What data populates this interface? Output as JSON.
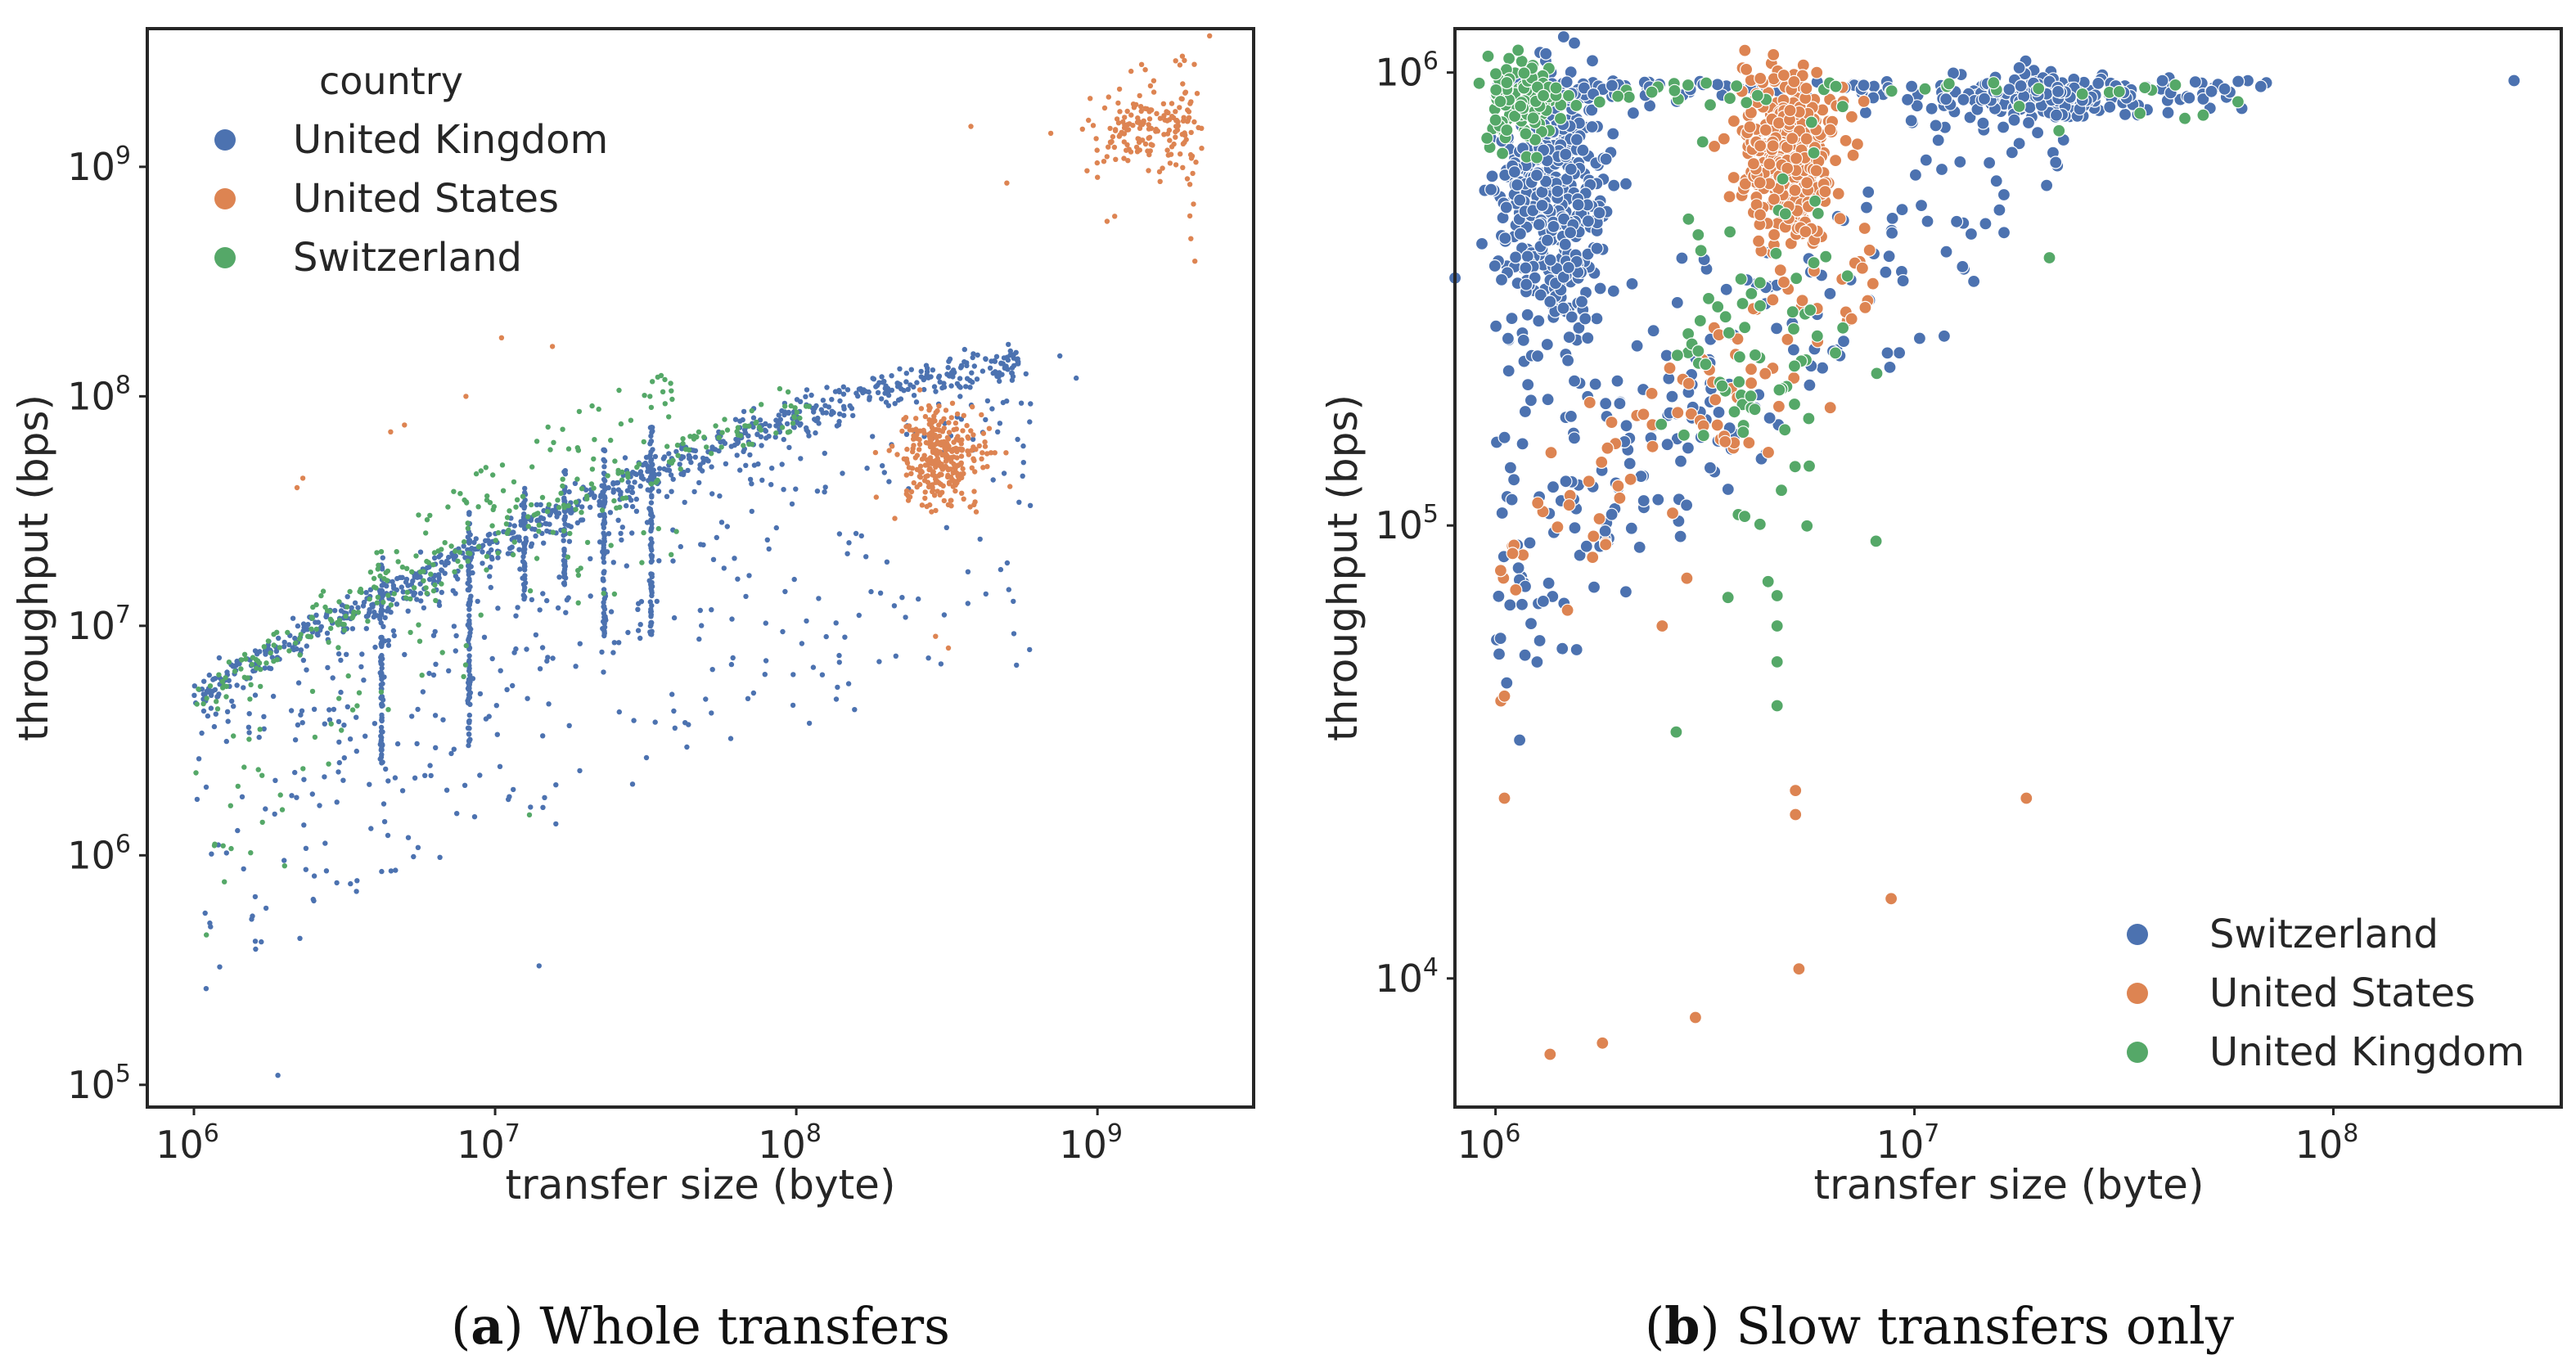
{
  "colors": {
    "blue": "#4c72b0",
    "orange": "#dd8452",
    "green": "#55a868"
  },
  "chart_data": [
    {
      "panel": "a",
      "type": "scatter",
      "caption_letter": "a",
      "caption_text": "Whole transfers",
      "xlabel": "transfer size (byte)",
      "ylabel": "throughput (bps)",
      "xscale": "log",
      "yscale": "log",
      "xlim": [
        700000.0,
        3300000000.0
      ],
      "ylim": [
        80000.0,
        4000000000.0
      ],
      "xticks": [
        {
          "base": "10",
          "exp": "6"
        },
        {
          "base": "10",
          "exp": "7"
        },
        {
          "base": "10",
          "exp": "8"
        },
        {
          "base": "10",
          "exp": "9"
        }
      ],
      "yticks": [
        {
          "base": "10",
          "exp": "5"
        },
        {
          "base": "10",
          "exp": "6"
        },
        {
          "base": "10",
          "exp": "7"
        },
        {
          "base": "10",
          "exp": "8"
        },
        {
          "base": "10",
          "exp": "9"
        }
      ],
      "legend": {
        "title": "country",
        "placement": "top-left",
        "entries": [
          "United Kingdom",
          "United States",
          "Switzerland"
        ]
      },
      "series": [
        {
          "name": "United Kingdom",
          "color_key": "blue",
          "description": "dense curve rising from about 5e6 bps at 1e6 bytes to about 1.4e8 bps at 5e8 bytes, with vertical streaks and scattered points below",
          "clusters": [
            {
              "kind": "curve",
              "x_range": [
                1000000.0,
                550000000.0
              ],
              "y_at_x0": 5000000.0,
              "y_at_x1": 145000000.0,
              "n": 700,
              "spread_dex": 0.04
            },
            {
              "kind": "scatter_below",
              "x_range": [
                1000000.0,
                600000000.0
              ],
              "n": 500,
              "max_drop_dex": 1.3
            },
            {
              "kind": "streak",
              "x": 4200000.0,
              "y_range": [
                2500000.0,
                20000000.0
              ]
            },
            {
              "kind": "streak",
              "x": 8200000.0,
              "y_range": [
                3000000.0,
                32000000.0
              ]
            },
            {
              "kind": "streak",
              "x": 12500000.0,
              "y_range": [
                13000000.0,
                40000000.0
              ]
            },
            {
              "kind": "streak",
              "x": 17000000.0,
              "y_range": [
                15000000.0,
                50000000.0
              ]
            },
            {
              "kind": "streak",
              "x": 23000000.0,
              "y_range": [
                9000000.0,
                60000000.0
              ]
            },
            {
              "kind": "streak",
              "x": 33000000.0,
              "y_range": [
                9000000.0,
                75000000.0
              ]
            },
            {
              "kind": "points",
              "x": [
                1900000.0,
                4200000.0,
                14000000.0,
                750000000.0,
                850000000.0
              ],
              "y": [
                110000.0,
                850000.0,
                330000.0,
                150000000.0,
                120000000.0
              ]
            }
          ]
        },
        {
          "name": "United States",
          "color_key": "orange",
          "description": "cluster near 3e8 bytes / 5e7 bps, cluster near 1.5e9 bytes / 1.5e9 bps, plus scattered outliers",
          "clusters": [
            {
              "kind": "blob",
              "cx": 300000000.0,
              "cy": 55000000.0,
              "sx_dex": 0.07,
              "sy_dex": 0.11,
              "n": 300
            },
            {
              "kind": "blob",
              "cx": 1400000000.0,
              "cy": 1500000000.0,
              "sx_dex": 0.07,
              "sy_dex": 0.1,
              "n": 130
            },
            {
              "kind": "blob",
              "cx": 1950000000.0,
              "cy": 1300000000.0,
              "sx_dex": 0.03,
              "sy_dex": 0.2,
              "n": 50
            },
            {
              "kind": "points",
              "x": [
                2200000.0,
                2300000.0,
                4500000.0,
                5000000.0,
                8000000.0,
                10500000.0,
                15500000.0,
                500000000.0,
                380000000.0,
                290000000.0,
                320000000.0,
                700000000.0,
                1000000000.0
              ],
              "y": [
                40000000.0,
                44000000.0,
                70000000.0,
                75000000.0,
                100000000.0,
                180000000.0,
                165000000.0,
                850000000.0,
                1500000000.0,
                9000000.0,
                8000000.0,
                1400000000.0,
                900000000.0
              ]
            }
          ]
        },
        {
          "name": "Switzerland",
          "color_key": "green",
          "description": "points along and slightly below the lower edge of the main curve, plus scattered points below",
          "clusters": [
            {
              "kind": "curve",
              "x_range": [
                1000000.0,
                120000000.0
              ],
              "y_at_x0": 4600000.0,
              "y_at_x1": 85000000.0,
              "n": 220,
              "spread_dex": 0.06
            },
            {
              "kind": "scatter_below",
              "x_range": [
                1000000.0,
                40000000.0
              ],
              "n": 160,
              "max_drop_dex": 0.9
            },
            {
              "kind": "points",
              "x": [
                1100000.0,
                1250000.0,
                1400000.0,
                2000000.0,
                2800000.0,
                13000000.0
              ],
              "y": [
                450000.0,
                1100000.0,
                2000000.0,
                900000.0,
                2500000.0,
                1500000.0
              ]
            }
          ]
        }
      ]
    },
    {
      "panel": "b",
      "type": "scatter",
      "caption_letter": "b",
      "caption_text": "Slow transfers only",
      "xlabel": "transfer size (byte)",
      "ylabel": "throughput (bps)",
      "xscale": "log",
      "yscale": "log",
      "xlim": [
        800000.0,
        350000000.0
      ],
      "ylim": [
        5200.0,
        1250000.0
      ],
      "xticks": [
        {
          "base": "10",
          "exp": "6"
        },
        {
          "base": "10",
          "exp": "7"
        },
        {
          "base": "10",
          "exp": "8"
        }
      ],
      "yticks": [
        {
          "base": "10",
          "exp": "4"
        },
        {
          "base": "10",
          "exp": "5"
        },
        {
          "base": "10",
          "exp": "6"
        }
      ],
      "legend": {
        "title": "",
        "placement": "bottom-right",
        "entries": [
          "Switzerland",
          "United States",
          "United Kingdom"
        ]
      },
      "series": [
        {
          "name": "Switzerland",
          "color_key": "blue",
          "description": "dense cluster at 1e6-1.8e6 bytes between 2e5 and 1e6 bps, cluster near 2e7 bytes close to 1e6 bps, diagonal band, points up to 2.7e8 bytes",
          "clusters": [
            {
              "kind": "blob",
              "cx": 1350000.0,
              "cy": 500000.0,
              "sx_dex": 0.07,
              "sy_dex": 0.17,
              "n": 420
            },
            {
              "kind": "band",
              "x_range": [
                1000000.0,
                24000000.0
              ],
              "y_at_x0": 70000.0,
              "y_at_x1": 950000.0,
              "spread_dex": 0.12,
              "n": 170
            },
            {
              "kind": "band",
              "x_range": [
                1000000.0,
                3500000.0
              ],
              "y_at_x0": 55000.0,
              "y_at_x1": 250000.0,
              "spread_dex": 0.15,
              "n": 60
            },
            {
              "kind": "blob",
              "cx": 21000000.0,
              "cy": 890000.0,
              "sx_dex": 0.12,
              "sy_dex": 0.025,
              "n": 170
            },
            {
              "kind": "top_row",
              "x_range": [
                1000000.0,
                70000000.0
              ],
              "y": 960000.0,
              "n": 150
            },
            {
              "kind": "points",
              "x": [
                270000000.0,
                1300000.0,
                1020000.0
              ],
              "y": [
                960000.0,
                68000.0,
                52000.0
              ]
            }
          ]
        },
        {
          "name": "United States",
          "color_key": "orange",
          "description": "dense cluster at 3.5e6-7e6 bytes between 3.5e5 and 1e6 bps, diagonal band down to 1e6 bytes, low outliers",
          "clusters": [
            {
              "kind": "blob",
              "cx": 5000000.0,
              "cy": 650000.0,
              "sx_dex": 0.06,
              "sy_dex": 0.09,
              "n": 360
            },
            {
              "kind": "band",
              "x_range": [
                1000000.0,
                8000000.0
              ],
              "y_at_x0": 80000.0,
              "y_at_x1": 350000.0,
              "spread_dex": 0.1,
              "n": 90
            },
            {
              "kind": "points",
              "x": [
                1030000.0,
                1050000.0,
                1050000.0,
                1350000.0,
                1800000.0,
                2500000.0,
                3000000.0,
                5200000.0,
                5200000.0,
                5300000.0,
                8800000.0,
                18500000.0
              ],
              "y": [
                41000.0,
                42000.0,
                25000.0,
                6800.0,
                7200.0,
                60000.0,
                8200.0,
                26000.0,
                23000.0,
                10500.0,
                15000.0,
                25000.0
              ]
            }
          ]
        },
        {
          "name": "United Kingdom",
          "color_key": "green",
          "description": "column at 1e6-1.4e6 bytes near 7e5-1e6 bps, scattered points 3e6-2e7 bytes, vertical streak at 4.7e6 bytes",
          "clusters": [
            {
              "kind": "blob",
              "cx": 1150000.0,
              "cy": 860000.0,
              "sx_dex": 0.04,
              "sy_dex": 0.05,
              "n": 90
            },
            {
              "kind": "blob",
              "cx": 4500000.0,
              "cy": 250000.0,
              "sx_dex": 0.12,
              "sy_dex": 0.2,
              "n": 80
            },
            {
              "kind": "top_row",
              "x_range": [
                1000000.0,
                75000000.0
              ],
              "y": 950000.0,
              "n": 60
            },
            {
              "kind": "points",
              "x": [
                4700000.0,
                4700000.0,
                4700000.0,
                4700000.0,
                2700000.0,
                21000000.0
              ],
              "y": [
                70000.0,
                60000.0,
                50000.0,
                40000.0,
                35000.0,
                390000.0
              ]
            }
          ]
        }
      ]
    }
  ]
}
